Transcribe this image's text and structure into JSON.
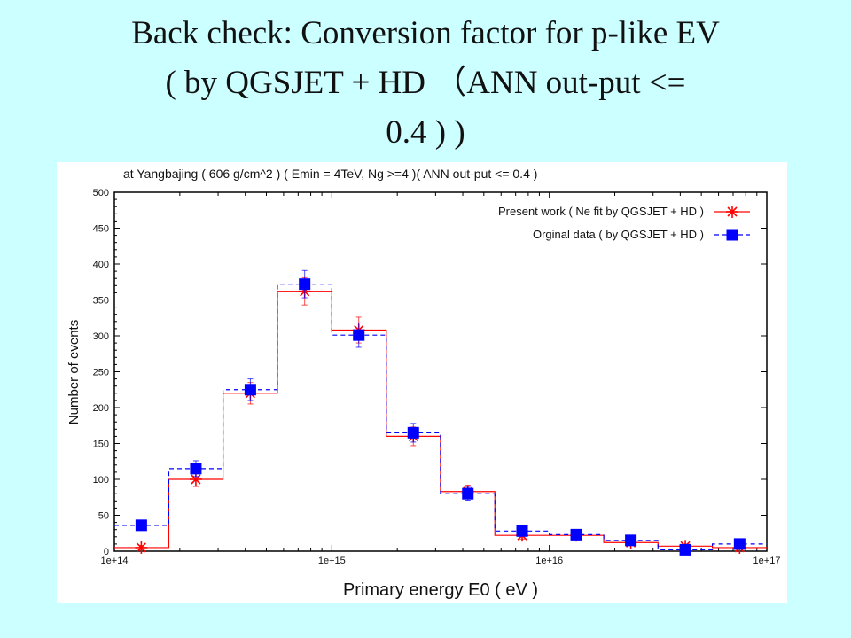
{
  "slide": {
    "title_line1": "Back check: Conversion factor for p-like EV",
    "title_line2": "( by QGSJET + HD （ANN out-put <=",
    "title_line3": "0.4 ) )"
  },
  "chart_data": {
    "type": "line",
    "title": "at  Yangbajing ( 606 g/cm^2 ) ( Emin = 4TeV, Ng >=4 )( ANN out-put <= 0.4 )",
    "xlabel": "Primary  energy  E0  ( eV )",
    "ylabel": "Number  of  events",
    "x_scale": "log",
    "xlim": [
      100000000000000.0,
      1e+17
    ],
    "ylim": [
      0,
      500
    ],
    "x_tick_values": [
      100000000000000.0,
      1000000000000000.0,
      1e+16,
      1e+17
    ],
    "x_tick_labels": [
      "1e+14",
      "1e+15",
      "1e+16",
      "1e+17"
    ],
    "y_ticks": [
      0,
      50,
      100,
      150,
      200,
      250,
      300,
      350,
      400,
      450,
      500
    ],
    "bin_edges": [
      100000000000000.0,
      178000000000000.0,
      316000000000000.0,
      562000000000000.0,
      1000000000000000.0,
      1780000000000000.0,
      3160000000000000.0,
      5620000000000000.0,
      1e+16,
      1.78e+16,
      3.16e+16,
      5.62e+16,
      1e+17
    ],
    "bin_centers": [
      133000000000000.0,
      237000000000000.0,
      422000000000000.0,
      750000000000000.0,
      1330000000000000.0,
      2370000000000000.0,
      4220000000000000.0,
      7500000000000000.0,
      1.33e+16,
      2.37e+16,
      4.22e+16,
      7.5e+16
    ],
    "legend_position": "top-right",
    "series": [
      {
        "name": "Present work ( Ne fit  by QGSJET + HD )",
        "color": "#ff0000",
        "marker": "asterisk",
        "line_style": "solid",
        "values": [
          5,
          100,
          220,
          362,
          308,
          160,
          83,
          22,
          22,
          12,
          7,
          5
        ],
        "errors": [
          3,
          10,
          15,
          19,
          18,
          13,
          9,
          5,
          5,
          4,
          3,
          2
        ]
      },
      {
        "name": "Orginal data ( by QGSJET + HD )",
        "color": "#0000ff",
        "marker": "square",
        "line_style": "dashed",
        "values": [
          36,
          115,
          225,
          372,
          301,
          165,
          80,
          28,
          23,
          15,
          2,
          10
        ],
        "errors": [
          6,
          11,
          15,
          19,
          17,
          13,
          9,
          5,
          5,
          4,
          1,
          3
        ]
      }
    ]
  }
}
